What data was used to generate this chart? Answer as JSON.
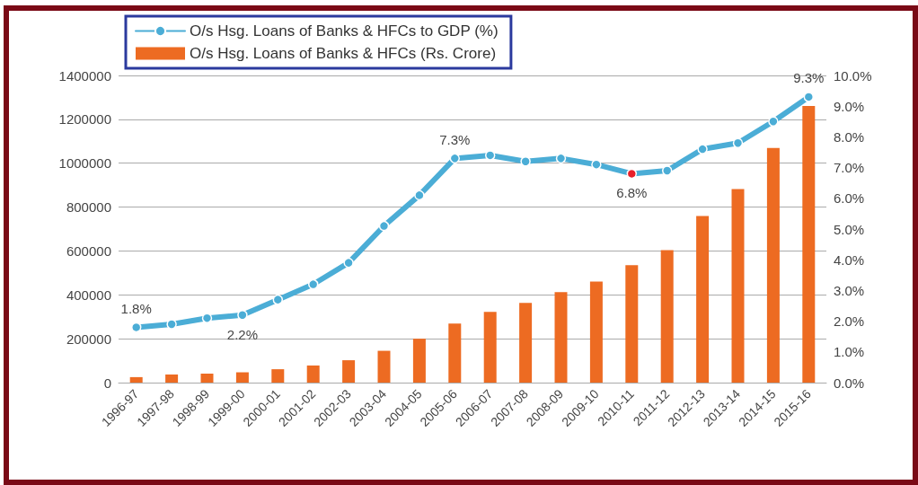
{
  "chart_data": {
    "type": "bar",
    "categories": [
      "1996-97",
      "1997-98",
      "1998-99",
      "1999-00",
      "2000-01",
      "2001-02",
      "2002-03",
      "2003-04",
      "2004-05",
      "2005-06",
      "2006-07",
      "2007-08",
      "2008-09",
      "2009-10",
      "2010-11",
      "2011-12",
      "2012-13",
      "2013-14",
      "2014-15",
      "2015-16"
    ],
    "series": [
      {
        "name": "O/s Hsg. Loans of Banks & HFCs to GDP (%)",
        "type": "line",
        "axis": "y2",
        "color": "#4badd6",
        "colors": [
          "#4badd6",
          "#4badd6",
          "#4badd6",
          "#4badd6",
          "#4badd6",
          "#4badd6",
          "#4badd6",
          "#4badd6",
          "#4badd6",
          "#4badd6",
          "#4badd6",
          "#4badd6",
          "#4badd6",
          "#4badd6",
          "#e8202a",
          "#4badd6",
          "#4badd6",
          "#4badd6",
          "#4badd6",
          "#4badd6"
        ],
        "values": [
          1.8,
          1.9,
          2.1,
          2.2,
          2.7,
          3.2,
          3.9,
          5.1,
          6.1,
          7.3,
          7.4,
          7.2,
          7.3,
          7.1,
          6.8,
          6.9,
          7.6,
          7.8,
          8.5,
          9.3
        ],
        "value_labels": [
          "1.8%",
          null,
          null,
          "2.2%",
          null,
          null,
          null,
          null,
          null,
          "7.3%",
          null,
          null,
          null,
          null,
          "6.8%",
          null,
          null,
          null,
          null,
          "9.3%"
        ],
        "marker": "circle",
        "line_style": "solid"
      },
      {
        "name": "O/s Hsg. Loans of Banks & HFCs (Rs. Crore)",
        "color": "#ed6b22",
        "values": [
          25000,
          37000,
          41000,
          47000,
          61000,
          78000,
          102000,
          145000,
          200000,
          269000,
          322000,
          363000,
          412000,
          461000,
          535000,
          604000,
          759000,
          882000,
          1069000,
          1261000
        ]
      }
    ],
    "ylim": [
      0,
      1400000
    ],
    "yticks": [
      0,
      200000,
      400000,
      600000,
      800000,
      1000000,
      1200000,
      1400000
    ],
    "y2lim": [
      0,
      10
    ],
    "y2ticks": [
      {
        "value": 0,
        "label": "0.0%"
      },
      {
        "value": 1,
        "label": "1.0%"
      },
      {
        "value": 2,
        "label": "2.0%"
      },
      {
        "value": 3,
        "label": "3.0%"
      },
      {
        "value": 4,
        "label": "4.0%"
      },
      {
        "value": 5,
        "label": "5.0%"
      },
      {
        "value": 6,
        "label": "6.0%"
      },
      {
        "value": 7,
        "label": "7.0%"
      },
      {
        "value": 8,
        "label": "8.0%"
      },
      {
        "value": 9,
        "label": "9.0%"
      },
      {
        "value": 10,
        "label": "10.0%"
      }
    ],
    "grid": "y",
    "legend": "top left"
  }
}
